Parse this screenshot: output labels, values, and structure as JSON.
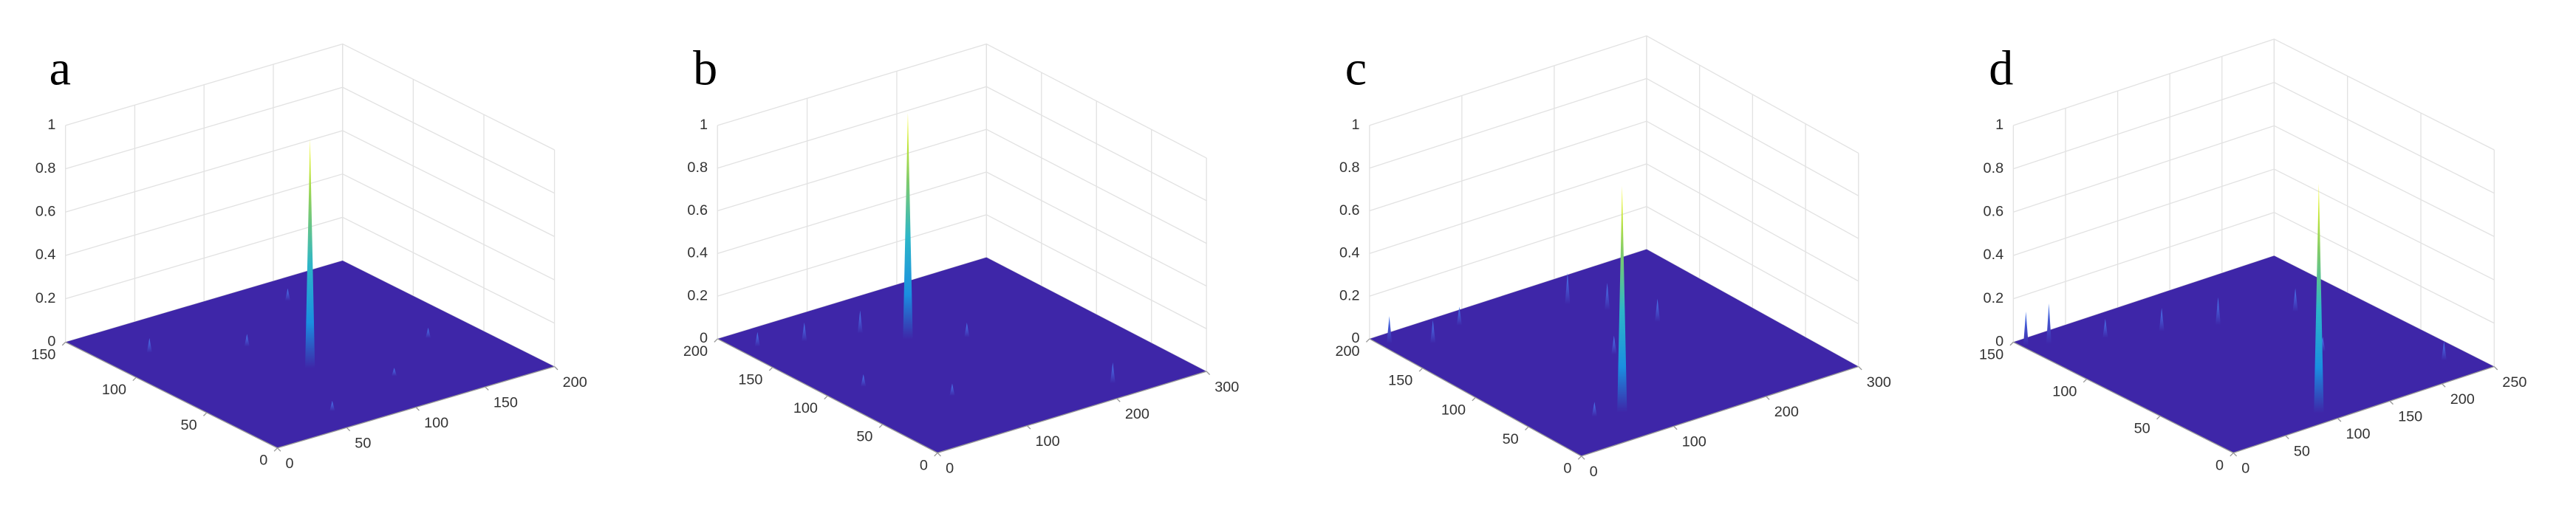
{
  "chart_data": [
    {
      "type": "surface3d",
      "title": "a",
      "xlim": [
        0,
        200
      ],
      "ylim": [
        0,
        150
      ],
      "zlim": [
        0,
        1
      ],
      "xticks": [
        0,
        50,
        100,
        150,
        200
      ],
      "yticks": [
        0,
        50,
        100,
        150
      ],
      "zticks": [
        0,
        0.2,
        0.4,
        0.6,
        0.8,
        1
      ],
      "x": [
        99,
        30,
        60,
        140,
        170,
        80,
        120
      ],
      "y": [
        74,
        120,
        20,
        130,
        60,
        100,
        35
      ],
      "z": [
        1,
        0.06,
        0.04,
        0.05,
        0.04,
        0.05,
        0.03
      ]
    },
    {
      "type": "surface3d",
      "title": "b",
      "xlim": [
        0,
        300
      ],
      "ylim": [
        0,
        200
      ],
      "zlim": [
        0,
        1
      ],
      "xticks": [
        0,
        100,
        200,
        300
      ],
      "yticks": [
        0,
        50,
        100,
        150,
        200
      ],
      "zticks": [
        0,
        0.2,
        0.4,
        0.6,
        0.8,
        1
      ],
      "x": [
        151,
        20,
        60,
        110,
        220,
        90,
        180,
        40
      ],
      "y": [
        150,
        180,
        170,
        160,
        20,
        60,
        120,
        100
      ],
      "z": [
        1,
        0.06,
        0.08,
        0.1,
        0.09,
        0.05,
        0.06,
        0.05
      ]
    },
    {
      "type": "surface3d",
      "title": "c",
      "xlim": [
        0,
        300
      ],
      "ylim": [
        0,
        200
      ],
      "zlim": [
        0,
        1
      ],
      "xticks": [
        0,
        100,
        200,
        300
      ],
      "yticks": [
        0,
        50,
        100,
        150,
        200
      ],
      "zticks": [
        0,
        0.2,
        0.4,
        0.6,
        0.8,
        1
      ],
      "x": [
        98,
        10,
        40,
        80,
        180,
        200,
        220,
        150,
        60
      ],
      "y": [
        47,
        190,
        175,
        185,
        170,
        150,
        120,
        100,
        40
      ],
      "z": [
        1,
        0.12,
        0.1,
        0.08,
        0.14,
        0.12,
        0.1,
        0.08,
        0.06
      ]
    },
    {
      "type": "surface3d",
      "title": "d",
      "xlim": [
        0,
        250
      ],
      "ylim": [
        0,
        150
      ],
      "zlim": [
        0,
        1
      ],
      "xticks": [
        0,
        50,
        100,
        150,
        200,
        250
      ],
      "yticks": [
        0,
        50,
        100,
        150
      ],
      "zticks": [
        0,
        0.2,
        0.4,
        0.6,
        0.8,
        1
      ],
      "x": [
        110,
        5,
        20,
        60,
        100,
        140,
        200,
        230,
        170
      ],
      "y": [
        20,
        145,
        140,
        130,
        120,
        110,
        100,
        20,
        60
      ],
      "z": [
        1,
        0.15,
        0.18,
        0.08,
        0.1,
        0.12,
        0.1,
        0.08,
        0.06
      ]
    }
  ]
}
